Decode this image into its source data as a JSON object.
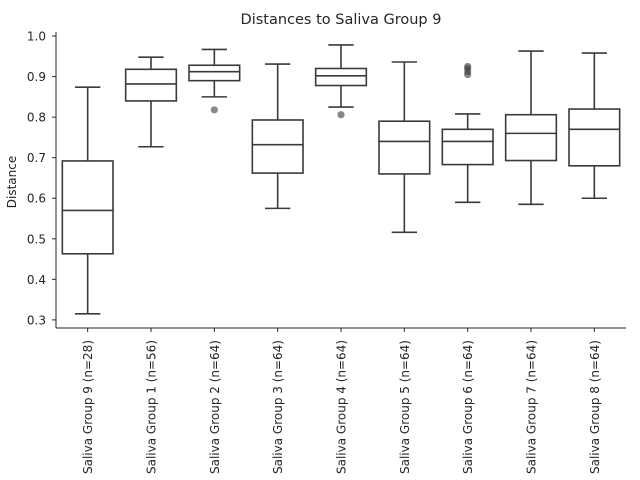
{
  "chart_data": {
    "type": "box",
    "title": "Distances to Saliva Group 9",
    "xlabel": "",
    "ylabel": "Distance",
    "ylim": [
      0.28,
      1.01
    ],
    "yticks": [
      0.3,
      0.4,
      0.5,
      0.6,
      0.7,
      0.8,
      0.9,
      1.0
    ],
    "grid": false,
    "categories": [
      "Saliva Group 9 (n=28)",
      "Saliva Group 1 (n=56)",
      "Saliva Group 2 (n=64)",
      "Saliva Group 3 (n=64)",
      "Saliva Group 4 (n=64)",
      "Saliva Group 5 (n=64)",
      "Saliva Group 6 (n=64)",
      "Saliva Group 7 (n=64)",
      "Saliva Group 8 (n=64)"
    ],
    "boxes": [
      {
        "whisker_low": 0.315,
        "q1": 0.463,
        "median": 0.57,
        "q3": 0.692,
        "whisker_high": 0.874,
        "outliers": []
      },
      {
        "whisker_low": 0.727,
        "q1": 0.84,
        "median": 0.882,
        "q3": 0.918,
        "whisker_high": 0.948,
        "outliers": []
      },
      {
        "whisker_low": 0.85,
        "q1": 0.89,
        "median": 0.912,
        "q3": 0.928,
        "whisker_high": 0.967,
        "outliers": [
          0.818
        ]
      },
      {
        "whisker_low": 0.575,
        "q1": 0.662,
        "median": 0.732,
        "q3": 0.793,
        "whisker_high": 0.931,
        "outliers": []
      },
      {
        "whisker_low": 0.825,
        "q1": 0.878,
        "median": 0.902,
        "q3": 0.92,
        "whisker_high": 0.978,
        "outliers": [
          0.806
        ]
      },
      {
        "whisker_low": 0.516,
        "q1": 0.66,
        "median": 0.74,
        "q3": 0.79,
        "whisker_high": 0.936,
        "outliers": []
      },
      {
        "whisker_low": 0.59,
        "q1": 0.683,
        "median": 0.74,
        "q3": 0.77,
        "whisker_high": 0.808,
        "outliers": [
          0.905,
          0.912,
          0.92,
          0.925
        ]
      },
      {
        "whisker_low": 0.585,
        "q1": 0.693,
        "median": 0.76,
        "q3": 0.806,
        "whisker_high": 0.963,
        "outliers": []
      },
      {
        "whisker_low": 0.6,
        "q1": 0.68,
        "median": 0.77,
        "q3": 0.82,
        "whisker_high": 0.958,
        "outliers": []
      }
    ]
  }
}
